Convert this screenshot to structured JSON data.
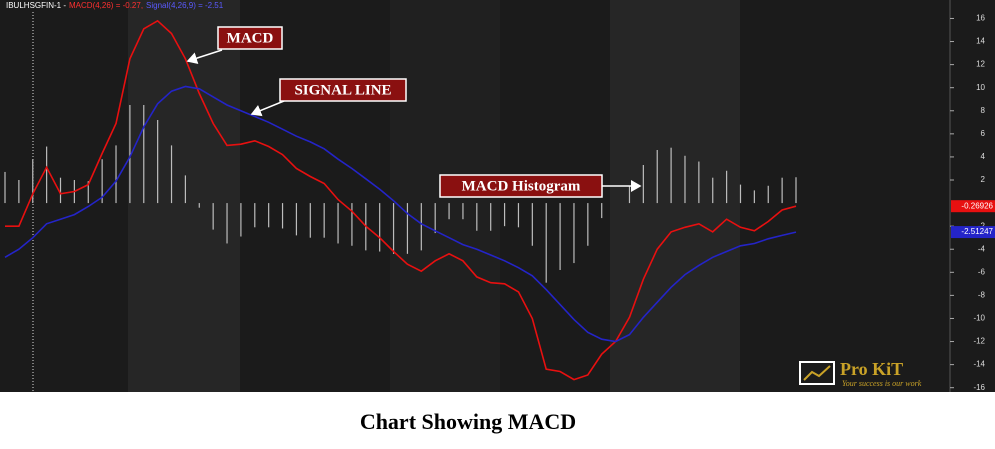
{
  "chart_data": {
    "type": "line",
    "header": {
      "instrument": "IBULHSGFIN-1 -",
      "macd": "MACD(4,26) = -0.27,",
      "signal": "Signal(4,26,9) = -2.51"
    },
    "caption": "Chart Showing MACD",
    "annotations": [
      "MACD",
      "SIGNAL LINE",
      "MACD Histogram"
    ],
    "logo": {
      "name": "Pro KiT",
      "tagline": "Your success is our work"
    },
    "categories": [
      null,
      null,
      null,
      null,
      null,
      null,
      null,
      null,
      null,
      null,
      null,
      null,
      null,
      null,
      null,
      null,
      null,
      null,
      null,
      null,
      null,
      null,
      null,
      null,
      null,
      null,
      null,
      null,
      null,
      null,
      null,
      null,
      null,
      null,
      null,
      null,
      null,
      null,
      null,
      null,
      null,
      null,
      null,
      null,
      null,
      null,
      null,
      null,
      null,
      null,
      null,
      null,
      null,
      null,
      null,
      null,
      null,
      null
    ],
    "series": [
      {
        "name": "MACD Histogram",
        "type": "bar",
        "color": "#bdbdbd",
        "values": [
          2.7,
          2,
          3.8,
          4.9,
          2.2,
          2,
          1.9,
          3.8,
          5,
          8.5,
          8.5,
          7.2,
          5,
          2.4,
          -0.4,
          -2.3,
          -3.5,
          -2.9,
          -2.1,
          -2.1,
          -2.2,
          -2.8,
          -3,
          -3,
          -3.5,
          -3.7,
          -4.1,
          -4.2,
          -4.4,
          -4.4,
          -4.1,
          -2.6,
          -1.4,
          -1.4,
          -2.4,
          -2.4,
          -2,
          -2.1,
          -3.7,
          -6.9,
          -5.8,
          -5.2,
          -3.7,
          -1.3,
          0,
          1.5,
          3.3,
          4.6,
          4.8,
          4.1,
          3.6,
          2.2,
          2.8,
          1.6,
          1.1,
          1.5,
          2.2,
          2.24
        ]
      },
      {
        "name": "MACD",
        "type": "line",
        "color": "#e81010",
        "last_value_label": "-0.26926",
        "values": [
          -2,
          -2,
          0.8,
          3.1,
          0.8,
          1,
          1.6,
          4.3,
          6.9,
          12.5,
          15.1,
          15.8,
          14.7,
          12.5,
          9.5,
          6.9,
          5,
          5.1,
          5.4,
          4.9,
          4.2,
          3,
          2.3,
          1.7,
          0.3,
          -0.7,
          -2,
          -3,
          -4.2,
          -5.3,
          -5.9,
          -5,
          -4.4,
          -5,
          -6.4,
          -6.9,
          -7,
          -7.7,
          -10,
          -14.4,
          -14.6,
          -15.3,
          -14.9,
          -13.1,
          -12,
          -9.9,
          -6.6,
          -4,
          -2.5,
          -2.1,
          -1.8,
          -2.5,
          -1.4,
          -2.1,
          -2.4,
          -1.6,
          -0.6,
          -0.26926
        ]
      },
      {
        "name": "Signal",
        "type": "line",
        "color": "#2424c8",
        "last_value_label": "-2.51247",
        "values": [
          -4.7,
          -4,
          -3,
          -1.8,
          -1.4,
          -1,
          -0.3,
          0.5,
          1.9,
          4,
          6.6,
          8.6,
          9.7,
          10.1,
          9.9,
          9.2,
          8.5,
          8,
          7.5,
          7,
          6.4,
          5.8,
          5.3,
          4.7,
          3.8,
          3,
          2.1,
          1.2,
          0.2,
          -0.9,
          -1.8,
          -2.4,
          -3,
          -3.6,
          -4,
          -4.5,
          -5,
          -5.6,
          -6.3,
          -7.5,
          -8.8,
          -10.1,
          -11.2,
          -11.8,
          -12,
          -11.4,
          -9.9,
          -8.6,
          -7.3,
          -6.2,
          -5.4,
          -4.7,
          -4.2,
          -3.7,
          -3.5,
          -3.1,
          -2.8,
          -2.51247
        ]
      }
    ],
    "ylim": [
      -16.2,
      17.6
    ],
    "yticks": [
      16,
      14,
      12,
      10,
      8,
      6,
      4,
      2,
      -2,
      -4,
      -6,
      -8,
      -10,
      -12,
      -14,
      -16
    ]
  }
}
